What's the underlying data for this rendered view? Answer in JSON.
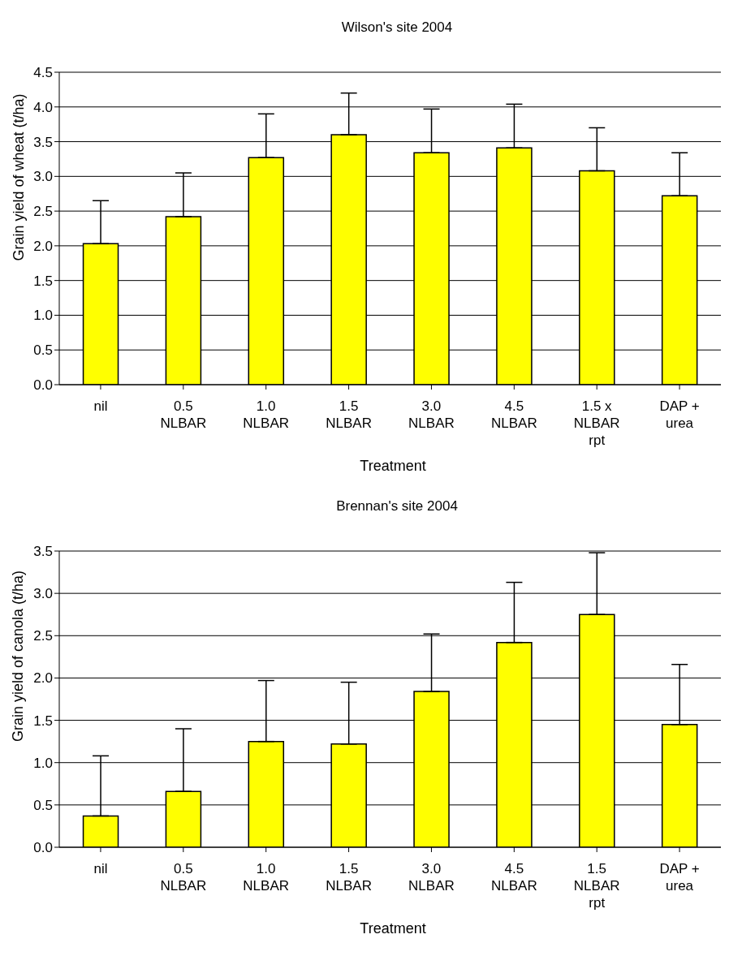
{
  "chart_data": [
    {
      "type": "bar",
      "title": "Wilson's site 2004",
      "xlabel": "Treatment",
      "ylabel": "Grain yield of wheat (t/ha)",
      "categories": [
        "nil",
        "0.5\nNLBAR",
        "1.0\nNLBAR",
        "1.5\nNLBAR",
        "3.0\nNLBAR",
        "4.5\nNLBAR",
        "1.5 x\nNLBAR\nrpt",
        "DAP +\nurea"
      ],
      "series": [
        {
          "color": "#ffff00",
          "values": [
            2.03,
            2.42,
            3.27,
            3.6,
            3.34,
            3.41,
            3.08,
            2.72
          ],
          "errors": [
            [
              2.03,
              2.65
            ],
            [
              2.42,
              3.05
            ],
            [
              3.27,
              3.9
            ],
            [
              3.6,
              4.2
            ],
            [
              3.34,
              3.97
            ],
            [
              3.41,
              4.04
            ],
            [
              3.08,
              3.7
            ],
            [
              2.72,
              3.34
            ]
          ]
        }
      ],
      "ylim": [
        0,
        4.5
      ],
      "yticks": [
        {
          "value": 0,
          "label": "0.0"
        },
        0.5,
        {
          "value": 1,
          "label": "1.0"
        },
        1.5,
        {
          "value": 2,
          "label": "2.0"
        },
        2.5,
        {
          "value": 3,
          "label": "3.0"
        },
        3.5,
        {
          "value": 4,
          "label": "4.0"
        },
        4.5
      ],
      "grid": "y",
      "legend": false
    },
    {
      "type": "bar",
      "title": "Brennan's site 2004",
      "xlabel": "Treatment",
      "ylabel": "Grain yield of canola (t/ha)",
      "categories": [
        "nil",
        "0.5\nNLBAR",
        "1.0\nNLBAR",
        "1.5\nNLBAR",
        "3.0\nNLBAR",
        "4.5\nNLBAR",
        "1.5\nNLBAR\nrpt",
        "DAP +\nurea"
      ],
      "series": [
        {
          "color": "#ffff00",
          "values": [
            0.37,
            0.66,
            1.25,
            1.22,
            1.84,
            2.42,
            2.75,
            1.45
          ],
          "errors": [
            [
              0.37,
              1.08
            ],
            [
              0.66,
              1.4
            ],
            [
              1.25,
              1.97
            ],
            [
              1.22,
              1.95
            ],
            [
              1.84,
              2.52
            ],
            [
              2.42,
              3.13
            ],
            [
              2.75,
              3.48
            ],
            [
              1.45,
              2.16
            ]
          ]
        }
      ],
      "ylim": [
        0,
        3.5
      ],
      "yticks": [
        {
          "value": 0,
          "label": "0.0"
        },
        0.5,
        {
          "value": 1,
          "label": "1.0"
        },
        1.5,
        {
          "value": 2,
          "label": "2.0"
        },
        2.5,
        {
          "value": 3,
          "label": "3.0"
        },
        3.5
      ],
      "grid": "y",
      "legend": false
    }
  ]
}
